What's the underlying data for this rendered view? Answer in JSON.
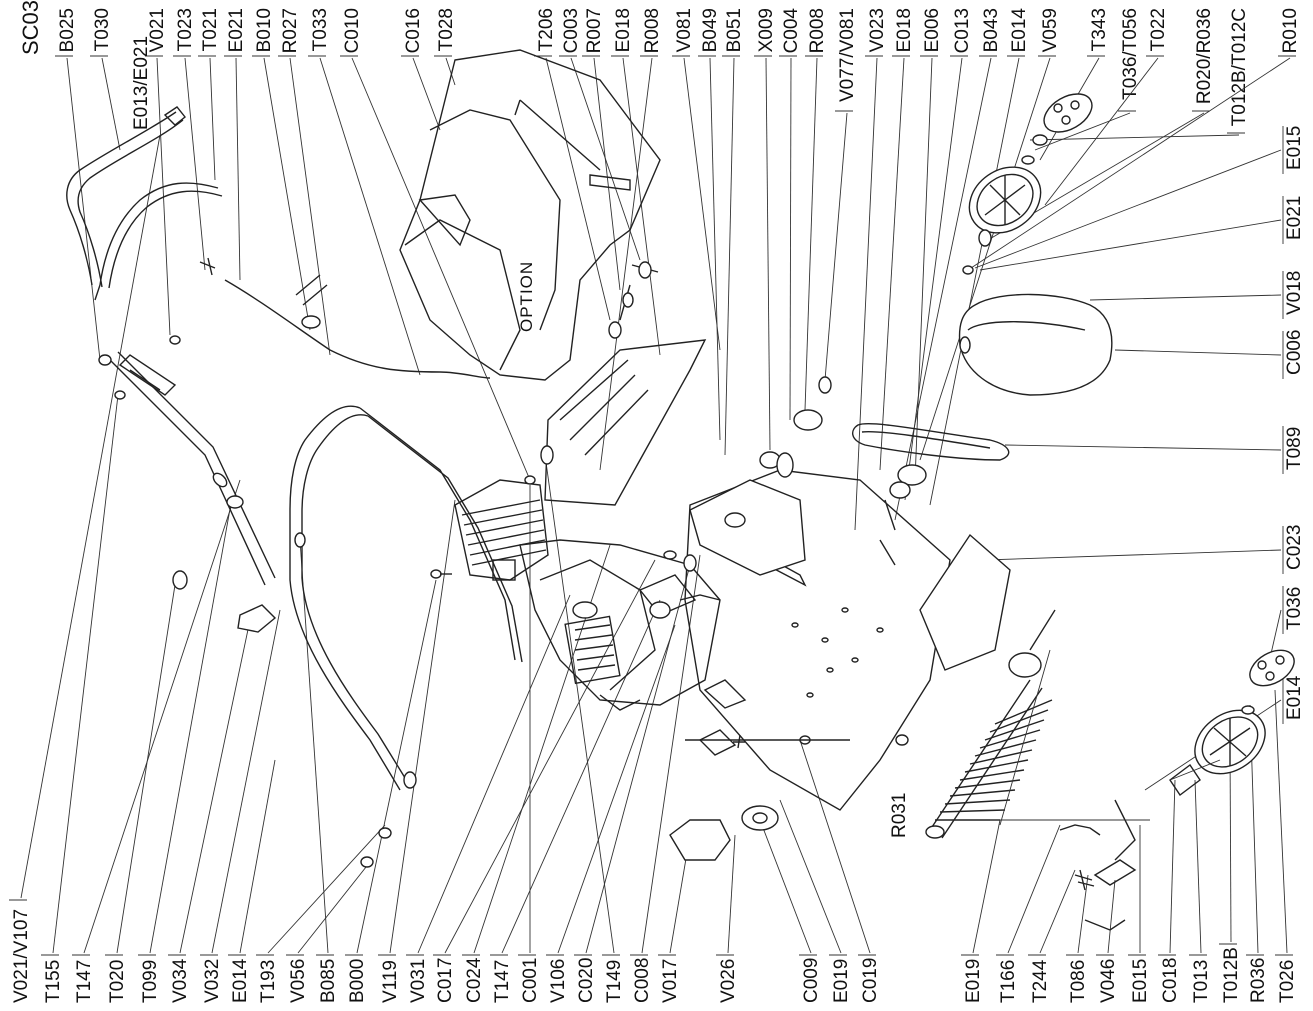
{
  "diagram_id": "SC03",
  "option_label": "OPTION",
  "top_labels": [
    "B025",
    "T030",
    "V021",
    "T023",
    "T021",
    "E021",
    "B010",
    "R027",
    "T033",
    "C010",
    "C016",
    "T028",
    "T206",
    "C003",
    "R007",
    "E018",
    "R008",
    "V081",
    "B049",
    "B051",
    "X009",
    "C004",
    "R008",
    "V077/V081",
    "V023",
    "E018",
    "E006",
    "C013",
    "B043",
    "E014",
    "V059",
    "T343",
    "T036/T056",
    "T022",
    "R020/R036",
    "T012B/T012C",
    "R010"
  ],
  "top_sub_label": "E013/E021",
  "right_labels": [
    "E015",
    "E021",
    "V018",
    "C006",
    "T089",
    "C023",
    "T036",
    "E014"
  ],
  "bottom_labels": [
    "V021/V107",
    "T155",
    "T147",
    "T020",
    "T099",
    "V034",
    "V032",
    "E014",
    "T193",
    "V056",
    "B085",
    "B000",
    "V119",
    "V031",
    "C017",
    "C024",
    "T147",
    "C001",
    "V106",
    "C020",
    "T149",
    "C008",
    "V017",
    "V026",
    "C009",
    "E019",
    "C019",
    "E019",
    "T166",
    "T244",
    "T086",
    "V046",
    "E015",
    "C018",
    "T013",
    "T012B",
    "R036",
    "T026"
  ],
  "mid_labels": [
    "R031"
  ]
}
